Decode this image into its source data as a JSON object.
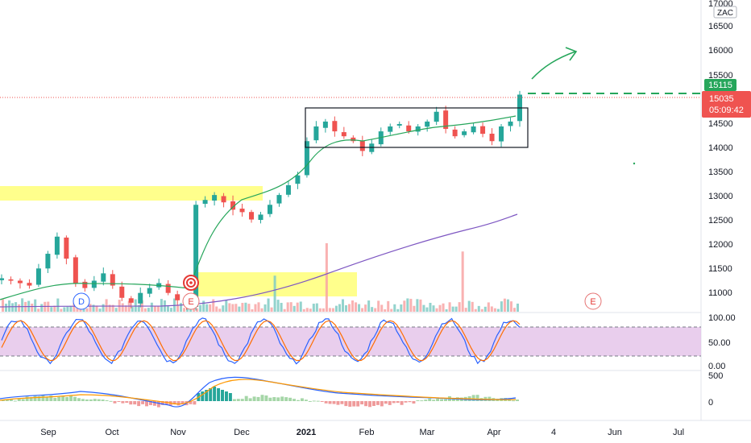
{
  "currency_badge": "ZAC",
  "chart_data": [
    {
      "type": "candlestick",
      "title": "",
      "y_axis_ticks": [
        "17000",
        "16500",
        "16000",
        "15500",
        "15000",
        "14500",
        "14000",
        "13500",
        "13000",
        "12500",
        "12000",
        "11500",
        "11000"
      ],
      "ylim": [
        10700,
        17050
      ],
      "x_axis_ticks": [
        "Sep",
        "Oct",
        "Nov",
        "Dec",
        "2021",
        "Feb",
        "Mar",
        "Apr",
        "4",
        "Jun",
        "Jul"
      ],
      "current_price_label": "15035",
      "countdown_label": "05:09:42",
      "target_price_label": "15115",
      "event_markers": [
        "D",
        "E",
        "E"
      ],
      "key_levels": {
        "consolidation_high": 14800,
        "consolidation_low": 13980,
        "breakout_target": 15115,
        "current_price": 15035
      },
      "ohlc_sample_closes": [
        11400,
        11350,
        11300,
        11250,
        11600,
        11900,
        12250,
        11800,
        11300,
        11200,
        11350,
        11500,
        11250,
        11000,
        10900,
        11100,
        11200,
        11300,
        11100,
        10950,
        10820,
        12900,
        13000,
        13100,
        12950,
        12800,
        12750,
        12600,
        12700,
        12900,
        13100,
        13300,
        13500,
        14200,
        14500,
        14600,
        14400,
        14300,
        14200,
        14000,
        14150,
        14400,
        14500,
        14550,
        14400,
        14500,
        14600,
        14800,
        14450,
        14300,
        14400,
        14500,
        14350,
        14200,
        14500,
        14600,
        15150
      ],
      "moving_average_fast_label": "",
      "moving_average_slow_label": ""
    },
    {
      "type": "oscillator",
      "name": "",
      "y_axis_ticks": [
        "100.00",
        "50.00",
        "0.00"
      ],
      "ylim": [
        0,
        100
      ],
      "band": [
        20,
        80
      ]
    },
    {
      "type": "histogram",
      "name": "",
      "y_axis_ticks": [
        "500",
        "0"
      ]
    }
  ]
}
